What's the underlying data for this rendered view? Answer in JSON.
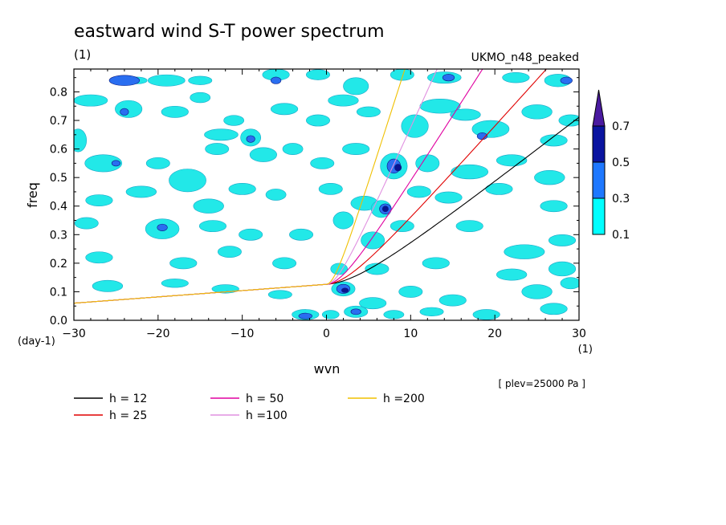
{
  "chart_data": {
    "type": "heatmap",
    "title": "eastward wind S-T power spectrum",
    "subtitle_left": "(1)",
    "subtitle_right": "UKMO_n48_peaked",
    "xlabel": "wvn",
    "ylabel": "freq",
    "x_unit_label": "(1)",
    "y_unit_label": "(day-1)",
    "note": "[ plev=25000 Pa ]",
    "xlim": [
      -30,
      30
    ],
    "ylim": [
      0,
      0.88
    ],
    "x_ticks": [
      -30,
      -20,
      -10,
      0,
      10,
      20,
      30
    ],
    "y_ticks": [
      0.0,
      0.1,
      0.2,
      0.3,
      0.4,
      0.5,
      0.6,
      0.7,
      0.8
    ],
    "contour_levels": [
      0.1,
      0.3,
      0.5,
      0.7
    ],
    "colorbar": {
      "labels": [
        "0.1",
        "0.3",
        "0.5",
        "0.7"
      ],
      "colors": [
        "#00ffff",
        "#1e78ff",
        "#0a14a0",
        "#4a1aa0"
      ]
    },
    "fill_colors": {
      "low": "#22e8e8",
      "mid": "#2a6ef0",
      "high": "#0a1490"
    },
    "blobs": [
      {
        "x": -24.0,
        "y": 0.84,
        "rx": 1.8,
        "ry": 0.018,
        "level": 2
      },
      {
        "x": -22.5,
        "y": 0.84,
        "rx": 1.2,
        "ry": 0.012,
        "level": 1
      },
      {
        "x": -19.0,
        "y": 0.84,
        "rx": 2.2,
        "ry": 0.02,
        "level": 1
      },
      {
        "x": -15.0,
        "y": 0.84,
        "rx": 1.4,
        "ry": 0.015,
        "level": 1
      },
      {
        "x": -6.0,
        "y": 0.86,
        "rx": 1.6,
        "ry": 0.02,
        "level": 1
      },
      {
        "x": -6.0,
        "y": 0.84,
        "rx": 0.6,
        "ry": 0.012,
        "level": 2
      },
      {
        "x": -1.0,
        "y": 0.86,
        "rx": 1.4,
        "ry": 0.018,
        "level": 1
      },
      {
        "x": 3.5,
        "y": 0.82,
        "rx": 1.5,
        "ry": 0.03,
        "level": 1
      },
      {
        "x": 9.0,
        "y": 0.86,
        "rx": 1.4,
        "ry": 0.02,
        "level": 1
      },
      {
        "x": 14.0,
        "y": 0.85,
        "rx": 2.0,
        "ry": 0.02,
        "level": 1
      },
      {
        "x": 14.5,
        "y": 0.85,
        "rx": 0.7,
        "ry": 0.012,
        "level": 2
      },
      {
        "x": 22.5,
        "y": 0.85,
        "rx": 1.6,
        "ry": 0.018,
        "level": 1
      },
      {
        "x": 27.5,
        "y": 0.84,
        "rx": 1.6,
        "ry": 0.022,
        "level": 1
      },
      {
        "x": 28.5,
        "y": 0.84,
        "rx": 0.7,
        "ry": 0.012,
        "level": 2
      },
      {
        "x": -28.0,
        "y": 0.77,
        "rx": 2.0,
        "ry": 0.02,
        "level": 1
      },
      {
        "x": -23.5,
        "y": 0.74,
        "rx": 1.6,
        "ry": 0.03,
        "level": 1
      },
      {
        "x": -24.0,
        "y": 0.73,
        "rx": 0.5,
        "ry": 0.012,
        "level": 2
      },
      {
        "x": -18.0,
        "y": 0.73,
        "rx": 1.6,
        "ry": 0.02,
        "level": 1
      },
      {
        "x": -15.0,
        "y": 0.78,
        "rx": 1.2,
        "ry": 0.018,
        "level": 1
      },
      {
        "x": -12.5,
        "y": 0.65,
        "rx": 2.0,
        "ry": 0.02,
        "level": 1
      },
      {
        "x": -11.0,
        "y": 0.7,
        "rx": 1.2,
        "ry": 0.018,
        "level": 1
      },
      {
        "x": -9.0,
        "y": 0.64,
        "rx": 1.2,
        "ry": 0.03,
        "level": 1
      },
      {
        "x": -9.0,
        "y": 0.635,
        "rx": 0.5,
        "ry": 0.012,
        "level": 2
      },
      {
        "x": -5.0,
        "y": 0.74,
        "rx": 1.6,
        "ry": 0.02,
        "level": 1
      },
      {
        "x": -1.0,
        "y": 0.7,
        "rx": 1.4,
        "ry": 0.02,
        "level": 1
      },
      {
        "x": 2.0,
        "y": 0.77,
        "rx": 1.8,
        "ry": 0.02,
        "level": 1
      },
      {
        "x": 5.0,
        "y": 0.73,
        "rx": 1.4,
        "ry": 0.018,
        "level": 1
      },
      {
        "x": 10.5,
        "y": 0.68,
        "rx": 1.6,
        "ry": 0.04,
        "level": 1
      },
      {
        "x": 13.5,
        "y": 0.75,
        "rx": 2.4,
        "ry": 0.025,
        "level": 1
      },
      {
        "x": 16.5,
        "y": 0.72,
        "rx": 1.8,
        "ry": 0.02,
        "level": 1
      },
      {
        "x": 19.5,
        "y": 0.67,
        "rx": 2.2,
        "ry": 0.03,
        "level": 1
      },
      {
        "x": 18.5,
        "y": 0.645,
        "rx": 0.6,
        "ry": 0.012,
        "level": 2
      },
      {
        "x": 25.0,
        "y": 0.73,
        "rx": 1.8,
        "ry": 0.025,
        "level": 1
      },
      {
        "x": 27.0,
        "y": 0.63,
        "rx": 1.6,
        "ry": 0.02,
        "level": 1
      },
      {
        "x": 29.0,
        "y": 0.7,
        "rx": 1.4,
        "ry": 0.02,
        "level": 1
      },
      {
        "x": -29.5,
        "y": 0.63,
        "rx": 1.0,
        "ry": 0.04,
        "level": 1
      },
      {
        "x": -26.5,
        "y": 0.55,
        "rx": 2.2,
        "ry": 0.03,
        "level": 1
      },
      {
        "x": -25.0,
        "y": 0.55,
        "rx": 0.5,
        "ry": 0.01,
        "level": 2
      },
      {
        "x": -20.0,
        "y": 0.55,
        "rx": 1.4,
        "ry": 0.02,
        "level": 1
      },
      {
        "x": -16.5,
        "y": 0.49,
        "rx": 2.2,
        "ry": 0.04,
        "level": 1
      },
      {
        "x": -13.0,
        "y": 0.6,
        "rx": 1.4,
        "ry": 0.02,
        "level": 1
      },
      {
        "x": -7.5,
        "y": 0.58,
        "rx": 1.6,
        "ry": 0.025,
        "level": 1
      },
      {
        "x": -4.0,
        "y": 0.6,
        "rx": 1.2,
        "ry": 0.02,
        "level": 1
      },
      {
        "x": -0.5,
        "y": 0.55,
        "rx": 1.4,
        "ry": 0.02,
        "level": 1
      },
      {
        "x": 3.5,
        "y": 0.6,
        "rx": 1.6,
        "ry": 0.02,
        "level": 1
      },
      {
        "x": 8.0,
        "y": 0.54,
        "rx": 1.6,
        "ry": 0.045,
        "level": 1
      },
      {
        "x": 8.0,
        "y": 0.54,
        "rx": 0.8,
        "ry": 0.025,
        "level": 2
      },
      {
        "x": 8.5,
        "y": 0.535,
        "rx": 0.4,
        "ry": 0.012,
        "level": 3
      },
      {
        "x": 12.0,
        "y": 0.55,
        "rx": 1.4,
        "ry": 0.03,
        "level": 1
      },
      {
        "x": 17.0,
        "y": 0.52,
        "rx": 2.2,
        "ry": 0.025,
        "level": 1
      },
      {
        "x": 22.0,
        "y": 0.56,
        "rx": 1.8,
        "ry": 0.02,
        "level": 1
      },
      {
        "x": 26.5,
        "y": 0.5,
        "rx": 1.8,
        "ry": 0.025,
        "level": 1
      },
      {
        "x": -27.0,
        "y": 0.42,
        "rx": 1.6,
        "ry": 0.02,
        "level": 1
      },
      {
        "x": -22.0,
        "y": 0.45,
        "rx": 1.8,
        "ry": 0.02,
        "level": 1
      },
      {
        "x": -14.0,
        "y": 0.4,
        "rx": 1.8,
        "ry": 0.025,
        "level": 1
      },
      {
        "x": -10.0,
        "y": 0.46,
        "rx": 1.6,
        "ry": 0.02,
        "level": 1
      },
      {
        "x": -6.0,
        "y": 0.44,
        "rx": 1.2,
        "ry": 0.02,
        "level": 1
      },
      {
        "x": 0.5,
        "y": 0.46,
        "rx": 1.4,
        "ry": 0.02,
        "level": 1
      },
      {
        "x": 4.5,
        "y": 0.41,
        "rx": 1.6,
        "ry": 0.025,
        "level": 1
      },
      {
        "x": 6.5,
        "y": 0.39,
        "rx": 1.2,
        "ry": 0.03,
        "level": 1
      },
      {
        "x": 7.0,
        "y": 0.39,
        "rx": 0.7,
        "ry": 0.018,
        "level": 2
      },
      {
        "x": 7.0,
        "y": 0.39,
        "rx": 0.35,
        "ry": 0.01,
        "level": 3
      },
      {
        "x": 11.0,
        "y": 0.45,
        "rx": 1.4,
        "ry": 0.02,
        "level": 1
      },
      {
        "x": 14.5,
        "y": 0.43,
        "rx": 1.6,
        "ry": 0.02,
        "level": 1
      },
      {
        "x": 20.5,
        "y": 0.46,
        "rx": 1.6,
        "ry": 0.02,
        "level": 1
      },
      {
        "x": 27.0,
        "y": 0.4,
        "rx": 1.6,
        "ry": 0.02,
        "level": 1
      },
      {
        "x": -28.5,
        "y": 0.34,
        "rx": 1.4,
        "ry": 0.02,
        "level": 1
      },
      {
        "x": -19.5,
        "y": 0.32,
        "rx": 2.0,
        "ry": 0.035,
        "level": 1
      },
      {
        "x": -19.5,
        "y": 0.325,
        "rx": 0.6,
        "ry": 0.012,
        "level": 2
      },
      {
        "x": -13.5,
        "y": 0.33,
        "rx": 1.6,
        "ry": 0.02,
        "level": 1
      },
      {
        "x": -9.0,
        "y": 0.3,
        "rx": 1.4,
        "ry": 0.02,
        "level": 1
      },
      {
        "x": -3.0,
        "y": 0.3,
        "rx": 1.4,
        "ry": 0.02,
        "level": 1
      },
      {
        "x": 2.0,
        "y": 0.35,
        "rx": 1.2,
        "ry": 0.03,
        "level": 1
      },
      {
        "x": 5.5,
        "y": 0.28,
        "rx": 1.4,
        "ry": 0.03,
        "level": 1
      },
      {
        "x": 9.0,
        "y": 0.33,
        "rx": 1.4,
        "ry": 0.02,
        "level": 1
      },
      {
        "x": 17.0,
        "y": 0.33,
        "rx": 1.6,
        "ry": 0.02,
        "level": 1
      },
      {
        "x": 23.5,
        "y": 0.24,
        "rx": 2.4,
        "ry": 0.025,
        "level": 1
      },
      {
        "x": 28.0,
        "y": 0.28,
        "rx": 1.6,
        "ry": 0.02,
        "level": 1
      },
      {
        "x": -27.0,
        "y": 0.22,
        "rx": 1.6,
        "ry": 0.02,
        "level": 1
      },
      {
        "x": -17.0,
        "y": 0.2,
        "rx": 1.6,
        "ry": 0.02,
        "level": 1
      },
      {
        "x": -11.5,
        "y": 0.24,
        "rx": 1.4,
        "ry": 0.02,
        "level": 1
      },
      {
        "x": -5.0,
        "y": 0.2,
        "rx": 1.4,
        "ry": 0.02,
        "level": 1
      },
      {
        "x": 1.5,
        "y": 0.18,
        "rx": 1.0,
        "ry": 0.02,
        "level": 1
      },
      {
        "x": 6.0,
        "y": 0.18,
        "rx": 1.4,
        "ry": 0.02,
        "level": 1
      },
      {
        "x": 13.0,
        "y": 0.2,
        "rx": 1.6,
        "ry": 0.02,
        "level": 1
      },
      {
        "x": 22.0,
        "y": 0.16,
        "rx": 1.8,
        "ry": 0.02,
        "level": 1
      },
      {
        "x": 28.0,
        "y": 0.18,
        "rx": 1.6,
        "ry": 0.025,
        "level": 1
      },
      {
        "x": -26.0,
        "y": 0.12,
        "rx": 1.8,
        "ry": 0.02,
        "level": 1
      },
      {
        "x": -18.0,
        "y": 0.13,
        "rx": 1.6,
        "ry": 0.015,
        "level": 1
      },
      {
        "x": -12.0,
        "y": 0.11,
        "rx": 1.6,
        "ry": 0.015,
        "level": 1
      },
      {
        "x": -5.5,
        "y": 0.09,
        "rx": 1.4,
        "ry": 0.015,
        "level": 1
      },
      {
        "x": 2.0,
        "y": 0.11,
        "rx": 1.4,
        "ry": 0.025,
        "level": 1
      },
      {
        "x": 2.0,
        "y": 0.11,
        "rx": 0.8,
        "ry": 0.016,
        "level": 2
      },
      {
        "x": 2.2,
        "y": 0.105,
        "rx": 0.4,
        "ry": 0.008,
        "level": 3
      },
      {
        "x": 5.5,
        "y": 0.06,
        "rx": 1.6,
        "ry": 0.02,
        "level": 1
      },
      {
        "x": 10.0,
        "y": 0.1,
        "rx": 1.4,
        "ry": 0.02,
        "level": 1
      },
      {
        "x": 15.0,
        "y": 0.07,
        "rx": 1.6,
        "ry": 0.02,
        "level": 1
      },
      {
        "x": 25.0,
        "y": 0.1,
        "rx": 1.8,
        "ry": 0.025,
        "level": 1
      },
      {
        "x": 29.0,
        "y": 0.13,
        "rx": 1.2,
        "ry": 0.02,
        "level": 1
      },
      {
        "x": -2.5,
        "y": 0.02,
        "rx": 1.6,
        "ry": 0.018,
        "level": 1
      },
      {
        "x": -2.5,
        "y": 0.015,
        "rx": 0.8,
        "ry": 0.01,
        "level": 2
      },
      {
        "x": 0.5,
        "y": 0.02,
        "rx": 1.0,
        "ry": 0.015,
        "level": 1
      },
      {
        "x": 3.5,
        "y": 0.03,
        "rx": 1.4,
        "ry": 0.02,
        "level": 1
      },
      {
        "x": 3.5,
        "y": 0.03,
        "rx": 0.6,
        "ry": 0.01,
        "level": 2
      },
      {
        "x": 8.0,
        "y": 0.02,
        "rx": 1.2,
        "ry": 0.015,
        "level": 1
      },
      {
        "x": 12.5,
        "y": 0.03,
        "rx": 1.4,
        "ry": 0.015,
        "level": 1
      },
      {
        "x": 19.0,
        "y": 0.02,
        "rx": 1.6,
        "ry": 0.018,
        "level": 1
      },
      {
        "x": 27.0,
        "y": 0.04,
        "rx": 1.6,
        "ry": 0.02,
        "level": 1
      }
    ],
    "series": [
      {
        "name": "h = 12",
        "color": "#000000",
        "h": 12
      },
      {
        "name": "h = 25",
        "color": "#e00000",
        "h": 25
      },
      {
        "name": "h = 50",
        "color": "#e000a0",
        "h": 50
      },
      {
        "name": "h =100",
        "color": "#e090e0",
        "h": 100
      },
      {
        "name": "h =200",
        "color": "#f0c000",
        "h": 200
      }
    ]
  }
}
